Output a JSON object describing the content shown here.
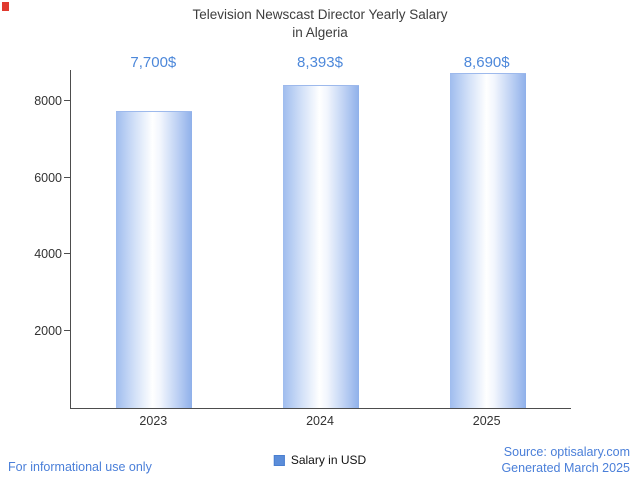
{
  "title": {
    "line1": "Television Newscast Director Yearly Salary",
    "line2": "in Algeria"
  },
  "legend": {
    "label": "Salary in USD",
    "color": "#5b8dd9"
  },
  "footer": {
    "left": "For informational use only",
    "source": "Source: optisalary.com",
    "generated": "Generated March 2025"
  },
  "chart_data": {
    "type": "bar",
    "title": "Television Newscast Director Yearly Salary in Algeria",
    "categories": [
      "2023",
      "2024",
      "2025"
    ],
    "values": [
      7700,
      8393,
      8690
    ],
    "value_labels": [
      "7,700$",
      "8,393$",
      "8,690$"
    ],
    "series_name": "Salary in USD",
    "xlabel": "",
    "ylabel": "",
    "ylim": [
      0,
      8800
    ],
    "yticks": [
      2000,
      4000,
      6000,
      8000
    ],
    "grid": false,
    "legend_position": "bottom",
    "bar_gradient": [
      "#9fbcee",
      "#ffffff",
      "#8fb0ea"
    ],
    "value_label_color": "#4d88da"
  }
}
